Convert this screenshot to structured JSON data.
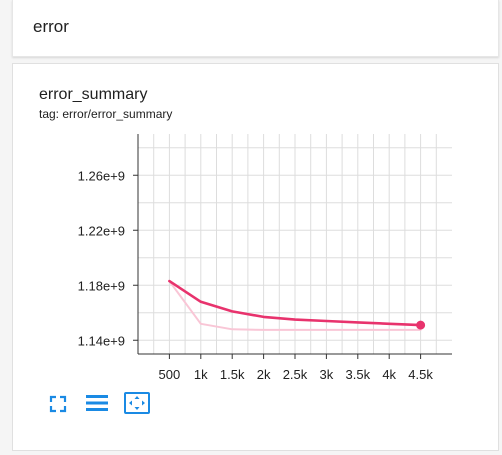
{
  "section": {
    "title": "error"
  },
  "card": {
    "title": "error_summary",
    "tag": "tag: error/error_summary"
  },
  "colors": {
    "series_main": "#e8336d",
    "series_raw": "#f9c6d6",
    "grid": "#dddddd",
    "icon_accent": "#1a8ae4"
  },
  "toolbar": {
    "icons": [
      "fullscreen-icon",
      "data-table-icon",
      "fit-domain-icon"
    ]
  },
  "chart_data": {
    "type": "line",
    "xlabel": "",
    "ylabel": "",
    "xlim": [
      0,
      5000
    ],
    "ylim": [
      1130000000,
      1290000000
    ],
    "x_ticks": [
      500,
      1000,
      1500,
      2000,
      2500,
      3000,
      3500,
      4000,
      4500
    ],
    "x_tick_labels": [
      "500",
      "1k",
      "1.5k",
      "2k",
      "2.5k",
      "3k",
      "3.5k",
      "4k",
      "4.5k"
    ],
    "y_ticks": [
      1140000000,
      1180000000,
      1220000000,
      1260000000
    ],
    "y_tick_labels": [
      "1.14e+9",
      "1.18e+9",
      "1.22e+9",
      "1.26e+9"
    ],
    "grid": true,
    "series": [
      {
        "role": "smoothed",
        "x": [
          500,
          1000,
          1500,
          2000,
          2500,
          3000,
          3500,
          4000,
          4500
        ],
        "y": [
          1183000000,
          1168000000,
          1161000000,
          1157000000,
          1155000000,
          1154000000,
          1153000000,
          1152000000,
          1151000000
        ]
      },
      {
        "role": "raw",
        "x": [
          500,
          1000,
          1500,
          2000,
          2500,
          3000,
          3500,
          4000,
          4500
        ],
        "y": [
          1183000000,
          1152000000,
          1148000000,
          1147500000,
          1147500000,
          1147500000,
          1147500000,
          1147500000,
          1147500000
        ]
      }
    ]
  }
}
